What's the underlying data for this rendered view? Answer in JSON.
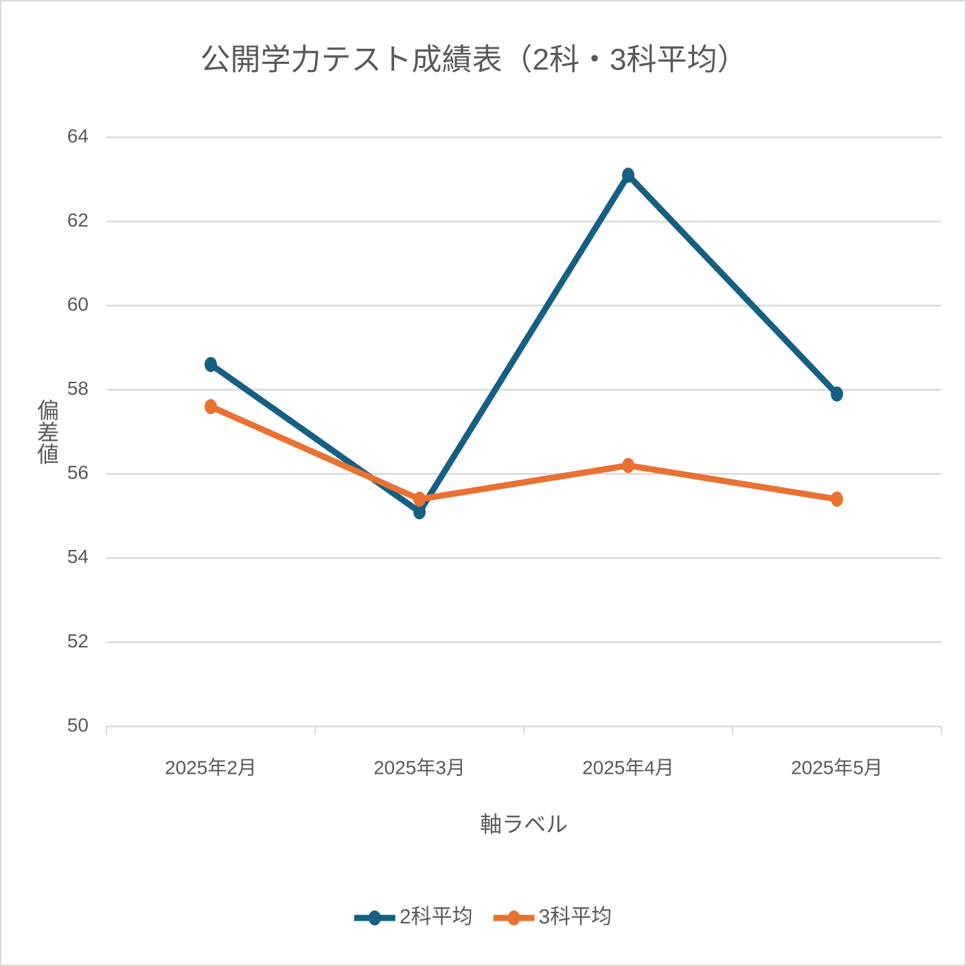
{
  "chart_data": {
    "type": "line",
    "title": "公開学力テスト成績表（2科・3科平均）",
    "y_label": "偏差値",
    "x_label": "軸ラベル",
    "categories": [
      "2025年2月",
      "2025年3月",
      "2025年4月",
      "2025年5月"
    ],
    "series": [
      {
        "name": "2科平均",
        "color": "#156082",
        "values": [
          58.6,
          55.1,
          63.1,
          57.9
        ]
      },
      {
        "name": "3科平均",
        "color": "#e97132",
        "values": [
          57.6,
          55.4,
          56.2,
          55.4
        ]
      }
    ],
    "ylim": [
      50,
      64
    ],
    "yticks": [
      50,
      52,
      54,
      56,
      58,
      60,
      62,
      64
    ],
    "grid": true,
    "legend": "bottom"
  }
}
